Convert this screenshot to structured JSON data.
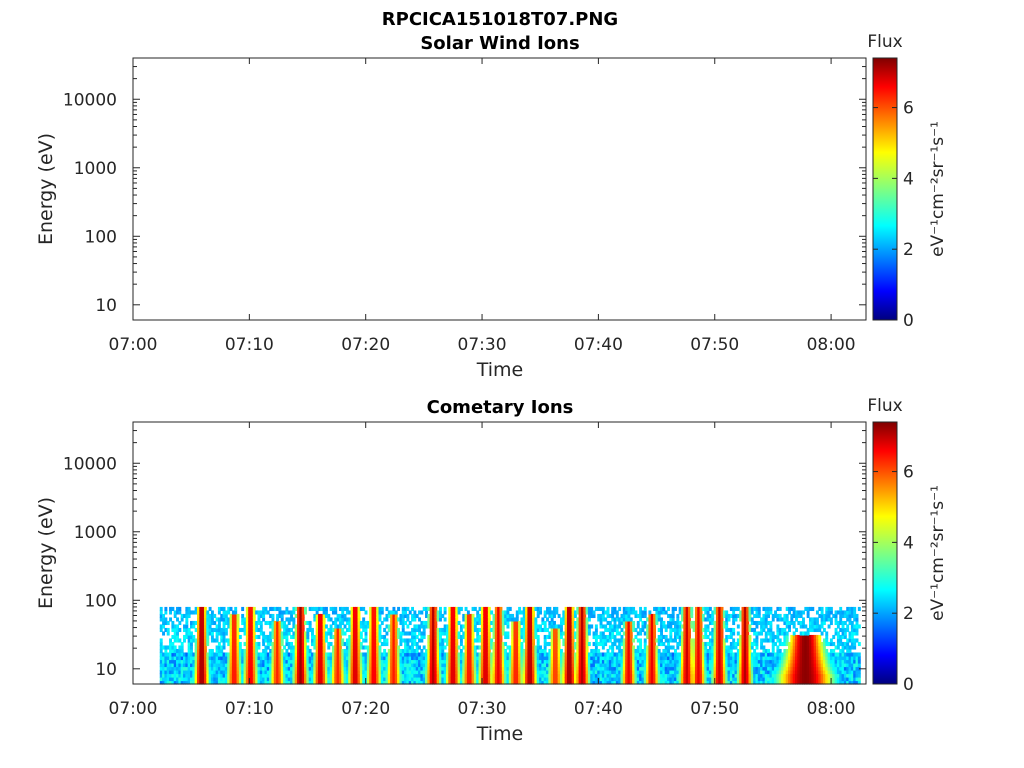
{
  "figure": {
    "main_title": "RPCICA151018T07.PNG"
  },
  "chart_data": [
    {
      "type": "heatmap",
      "title": "Solar Wind Ions",
      "xlabel": "Time",
      "ylabel": "Energy (eV)",
      "x_ticks": [
        "07:00",
        "07:10",
        "07:20",
        "07:30",
        "07:40",
        "07:50",
        "08:00"
      ],
      "x_range_minutes": [
        0,
        63
      ],
      "y_scale": "log",
      "y_ticks": [
        "10",
        "100",
        "1000",
        "10000"
      ],
      "ylim": [
        6,
        40000
      ],
      "colorbar": {
        "label": "Flux",
        "unit": "eV⁻¹cm⁻²sr⁻¹s⁻¹",
        "ticks": [
          "0",
          "2",
          "4",
          "6"
        ],
        "range": [
          0,
          7.4
        ],
        "colormap": "jet"
      },
      "data_present": false
    },
    {
      "type": "heatmap",
      "title": "Cometary Ions",
      "xlabel": "Time",
      "ylabel": "Energy (eV)",
      "x_ticks": [
        "07:00",
        "07:10",
        "07:20",
        "07:30",
        "07:40",
        "07:50",
        "08:00"
      ],
      "x_range_minutes": [
        0,
        63
      ],
      "y_scale": "log",
      "y_ticks": [
        "10",
        "100",
        "1000",
        "10000"
      ],
      "ylim": [
        6,
        40000
      ],
      "colorbar": {
        "label": "Flux",
        "unit": "eV⁻¹cm⁻²sr⁻¹s⁻¹",
        "ticks": [
          "0",
          "2",
          "4",
          "6"
        ],
        "range": [
          0,
          7.4
        ],
        "colormap": "jet"
      },
      "data_present": true,
      "data_coverage_minutes": [
        2.3,
        62.5
      ],
      "max_energy_eV": 80,
      "flux_peaks": [
        {
          "time_min": 5.8,
          "top_eV": 80,
          "flux": 7.2
        },
        {
          "time_min": 8.6,
          "top_eV": 60,
          "flux": 6.4
        },
        {
          "time_min": 10.0,
          "top_eV": 80,
          "flux": 6.6
        },
        {
          "time_min": 12.3,
          "top_eV": 50,
          "flux": 6.2
        },
        {
          "time_min": 14.3,
          "top_eV": 80,
          "flux": 7.2
        },
        {
          "time_min": 16.0,
          "top_eV": 60,
          "flux": 6.8
        },
        {
          "time_min": 17.5,
          "top_eV": 40,
          "flux": 6.2
        },
        {
          "time_min": 19.0,
          "top_eV": 80,
          "flux": 6.8
        },
        {
          "time_min": 20.6,
          "top_eV": 80,
          "flux": 6.6
        },
        {
          "time_min": 22.3,
          "top_eV": 60,
          "flux": 6.3
        },
        {
          "time_min": 25.7,
          "top_eV": 80,
          "flux": 7.0
        },
        {
          "time_min": 27.4,
          "top_eV": 80,
          "flux": 6.8
        },
        {
          "time_min": 28.8,
          "top_eV": 60,
          "flux": 6.4
        },
        {
          "time_min": 30.2,
          "top_eV": 80,
          "flux": 6.8
        },
        {
          "time_min": 31.3,
          "top_eV": 80,
          "flux": 6.6
        },
        {
          "time_min": 32.8,
          "top_eV": 50,
          "flux": 6.3
        },
        {
          "time_min": 34.0,
          "top_eV": 80,
          "flux": 7.1
        },
        {
          "time_min": 36.2,
          "top_eV": 40,
          "flux": 6.1
        },
        {
          "time_min": 37.4,
          "top_eV": 80,
          "flux": 7.2
        },
        {
          "time_min": 38.5,
          "top_eV": 80,
          "flux": 7.0
        },
        {
          "time_min": 42.5,
          "top_eV": 50,
          "flux": 6.6
        },
        {
          "time_min": 44.5,
          "top_eV": 60,
          "flux": 6.6
        },
        {
          "time_min": 47.5,
          "top_eV": 80,
          "flux": 6.8
        },
        {
          "time_min": 48.5,
          "top_eV": 80,
          "flux": 6.6
        },
        {
          "time_min": 50.3,
          "top_eV": 80,
          "flux": 6.8
        },
        {
          "time_min": 52.5,
          "top_eV": 80,
          "flux": 7.0
        },
        {
          "time_min": 57.7,
          "top_eV": 30,
          "flux": 7.3
        }
      ]
    }
  ]
}
